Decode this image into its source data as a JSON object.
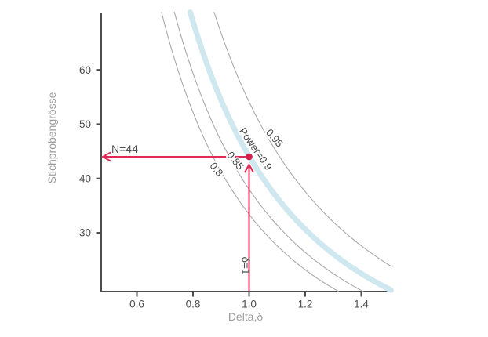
{
  "chart_data": {
    "type": "line",
    "title": "",
    "xlabel": "Delta,δ",
    "ylabel": "Stichprobengrösse",
    "xlim": [
      0.473,
      1.506
    ],
    "ylim": [
      19.2,
      70.6
    ],
    "x_ticks": [
      0.6,
      0.8,
      1.0,
      1.2,
      1.4
    ],
    "x_tick_labels": [
      "0.6",
      "0.8",
      "1.0",
      "1.2",
      "1.4"
    ],
    "y_ticks": [
      30,
      40,
      50,
      60
    ],
    "y_tick_labels": [
      "30",
      "40",
      "50",
      "60"
    ],
    "grid": false,
    "legend": "labels-on-curves",
    "description": "Required total sample size versus effect size delta for a two-sample t-test at four power levels; N = n1/delta^2",
    "series": [
      {
        "name": "power-0.80",
        "label": "0.8",
        "power": 0.8,
        "n_total_at_delta_1": 33.4,
        "line": "thin",
        "x": [
          0.5,
          0.6,
          0.7,
          0.8,
          0.9,
          1.0,
          1.1,
          1.2,
          1.3,
          1.4,
          1.5
        ],
        "n": [
          133.6,
          92.8,
          68.2,
          52.2,
          41.2,
          33.4,
          27.6,
          23.2,
          19.8,
          17.0,
          14.8
        ]
      },
      {
        "name": "power-0.85",
        "label": "0.85",
        "power": 0.85,
        "n_total_at_delta_1": 38.0,
        "line": "thin",
        "x": [
          0.5,
          0.6,
          0.7,
          0.8,
          0.9,
          1.0,
          1.1,
          1.2,
          1.3,
          1.4,
          1.5
        ],
        "n": [
          152.0,
          105.6,
          77.6,
          59.4,
          46.9,
          38.0,
          31.4,
          26.4,
          22.5,
          19.4,
          16.9
        ]
      },
      {
        "name": "power-0.90",
        "label": "Power=0.9",
        "power": 0.9,
        "n_total_at_delta_1": 44.1,
        "line": "thick-highlight",
        "x": [
          0.5,
          0.6,
          0.7,
          0.8,
          0.9,
          1.0,
          1.1,
          1.2,
          1.3,
          1.4,
          1.5
        ],
        "n": [
          176.4,
          122.5,
          90.0,
          68.9,
          54.4,
          44.1,
          36.4,
          30.6,
          26.1,
          22.5,
          19.6
        ]
      },
      {
        "name": "power-0.95",
        "label": "0.95",
        "power": 0.95,
        "n_total_at_delta_1": 54.1,
        "line": "thin",
        "x": [
          0.5,
          0.6,
          0.7,
          0.8,
          0.9,
          1.0,
          1.1,
          1.2,
          1.3,
          1.4,
          1.5
        ],
        "n": [
          216.4,
          150.3,
          110.4,
          84.5,
          66.8,
          54.1,
          44.7,
          37.6,
          32.0,
          27.6,
          24.0
        ]
      }
    ],
    "highlight_point": {
      "delta": 1.0,
      "n": 44
    },
    "annotations": [
      {
        "id": "n-label",
        "text": "N=44",
        "arrow": "horizontal-left-to-y-axis"
      },
      {
        "id": "delta-label",
        "text": "δ=1",
        "arrow": "vertical-up-from-x-axis"
      }
    ]
  },
  "colors": {
    "background": "#ffffff",
    "axis": "#4d4d4d",
    "tick_label": "#4d4d4d",
    "axis_title": "#9e9e9e",
    "curve_thin": "#a9a9a9",
    "curve_highlight": "#cfe7ef",
    "curve_label": "#474747",
    "annotation_line": "#e02a55",
    "annotation_text": "#4d4d4d",
    "point": "#d81b47"
  }
}
